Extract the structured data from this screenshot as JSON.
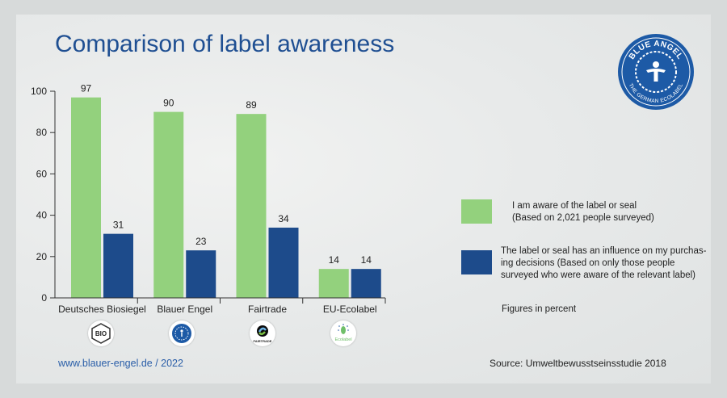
{
  "header": {
    "title": "Comparison of label awareness"
  },
  "chart_data": {
    "type": "bar",
    "title": "Comparison of label awareness",
    "categories": [
      "Deutsches Biosiegel",
      "Blauer Engel",
      "Fairtrade",
      "EU-Ecolabel"
    ],
    "series": [
      {
        "name": "I am aware of the label or seal (Based on 2,021 people surveyed)",
        "color": "#93d17d",
        "values": [
          97,
          90,
          89,
          14
        ]
      },
      {
        "name": "The label or seal has an influence on my purchasing decisions (Based on only those people surveyed who were aware of the relevant label)",
        "color": "#1d4b8b",
        "values": [
          31,
          23,
          34,
          14
        ]
      }
    ],
    "ylim": [
      0,
      100
    ],
    "yticks": [
      0,
      20,
      40,
      60,
      80,
      100
    ],
    "xlabel": "",
    "ylabel": "",
    "grid": false,
    "legend_position": "right"
  },
  "legend": {
    "aware_line1": "I am aware of the label or seal",
    "aware_line2": "(Based on 2,021 people surveyed)",
    "influence_line1": "The label or seal has an influence on my purchas-",
    "influence_line2": "ing decisions (Based on only those people",
    "influence_line3": "surveyed who were aware of the relevant label)"
  },
  "note": "Figures in percent",
  "footer": {
    "url": "www.blauer-engel.de / 2022",
    "source": "Source: Umweltbewusstseinsstudie 2018"
  },
  "badge": {
    "top_text": "BLUE ANGEL",
    "bottom_text": "THE GERMAN ECOLABEL",
    "color": "#1d5aa6"
  },
  "label_logos": [
    {
      "icon": "bio-seal-icon",
      "text": "BIO"
    },
    {
      "icon": "blue-angel-icon",
      "text": ""
    },
    {
      "icon": "fairtrade-icon",
      "text": "FAIRTRADE"
    },
    {
      "icon": "eu-ecolabel-icon",
      "text": "Ecolabel"
    }
  ]
}
